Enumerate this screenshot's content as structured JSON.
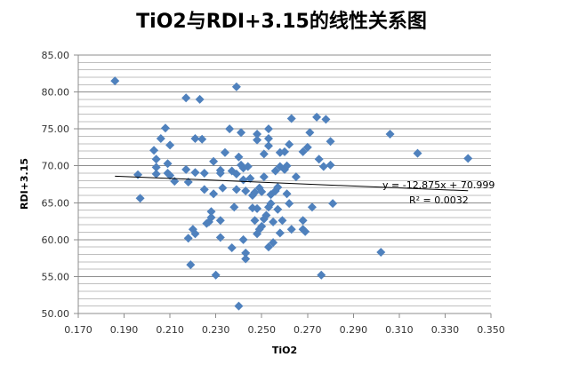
{
  "chart_data": {
    "type": "scatter",
    "title": "TiO2与RDI+3.15的线性关系图",
    "xlabel": "TiO2",
    "ylabel": "RDI+3.15",
    "xlim": [
      0.17,
      0.35
    ],
    "ylim": [
      50,
      85
    ],
    "x_ticks": [
      "0.170",
      "0.190",
      "0.210",
      "0.230",
      "0.250",
      "0.270",
      "0.290",
      "0.310",
      "0.330",
      "0.350"
    ],
    "y_ticks": [
      "85.00",
      "80.00",
      "75.00",
      "70.00",
      "65.00",
      "60.00",
      "55.00",
      "50.00"
    ],
    "grid": {
      "major_y": 5,
      "minor_y": 1,
      "x_grid": false
    },
    "marker": {
      "shape": "diamond",
      "color": "#4F81BD"
    },
    "trendline": {
      "type": "linear",
      "equation": "y = -12.875x  + 70.999",
      "r_squared": "R² = 0.0032",
      "slope": -12.875,
      "intercept": 70.999,
      "x_range": [
        0.186,
        0.34
      ],
      "color": "#000000"
    },
    "points": [
      [
        0.186,
        81.5
      ],
      [
        0.196,
        68.8
      ],
      [
        0.197,
        65.6
      ],
      [
        0.203,
        72.1
      ],
      [
        0.204,
        70.9
      ],
      [
        0.204,
        69.8
      ],
      [
        0.204,
        68.9
      ],
      [
        0.206,
        73.7
      ],
      [
        0.208,
        75.1
      ],
      [
        0.209,
        69.0
      ],
      [
        0.209,
        70.3
      ],
      [
        0.21,
        72.8
      ],
      [
        0.21,
        68.7
      ],
      [
        0.212,
        67.9
      ],
      [
        0.217,
        79.2
      ],
      [
        0.217,
        69.5
      ],
      [
        0.218,
        67.8
      ],
      [
        0.218,
        60.2
      ],
      [
        0.219,
        56.6
      ],
      [
        0.22,
        61.4
      ],
      [
        0.221,
        73.7
      ],
      [
        0.221,
        69.1
      ],
      [
        0.221,
        60.8
      ],
      [
        0.223,
        79.0
      ],
      [
        0.224,
        73.6
      ],
      [
        0.225,
        69.0
      ],
      [
        0.225,
        66.8
      ],
      [
        0.226,
        62.2
      ],
      [
        0.227,
        62.4
      ],
      [
        0.228,
        63.8
      ],
      [
        0.228,
        63.0
      ],
      [
        0.229,
        70.6
      ],
      [
        0.229,
        66.2
      ],
      [
        0.23,
        55.2
      ],
      [
        0.232,
        69.4
      ],
      [
        0.232,
        69.0
      ],
      [
        0.232,
        62.6
      ],
      [
        0.232,
        60.3
      ],
      [
        0.233,
        67.0
      ],
      [
        0.234,
        71.8
      ],
      [
        0.236,
        75.0
      ],
      [
        0.237,
        69.3
      ],
      [
        0.237,
        58.9
      ],
      [
        0.238,
        64.4
      ],
      [
        0.239,
        80.7
      ],
      [
        0.239,
        68.9
      ],
      [
        0.239,
        66.8
      ],
      [
        0.24,
        71.2
      ],
      [
        0.24,
        51.0
      ],
      [
        0.241,
        74.5
      ],
      [
        0.241,
        70.1
      ],
      [
        0.242,
        69.7
      ],
      [
        0.242,
        68.1
      ],
      [
        0.242,
        60.0
      ],
      [
        0.243,
        57.4
      ],
      [
        0.243,
        66.6
      ],
      [
        0.243,
        58.2
      ],
      [
        0.244,
        69.9
      ],
      [
        0.245,
        68.3
      ],
      [
        0.246,
        66.0
      ],
      [
        0.246,
        64.3
      ],
      [
        0.247,
        66.4
      ],
      [
        0.247,
        62.6
      ],
      [
        0.248,
        74.3
      ],
      [
        0.248,
        73.5
      ],
      [
        0.248,
        64.2
      ],
      [
        0.248,
        60.8
      ],
      [
        0.249,
        61.4
      ],
      [
        0.249,
        67.0
      ],
      [
        0.25,
        61.8
      ],
      [
        0.25,
        66.5
      ],
      [
        0.251,
        71.6
      ],
      [
        0.251,
        68.5
      ],
      [
        0.251,
        62.8
      ],
      [
        0.252,
        63.3
      ],
      [
        0.253,
        75.0
      ],
      [
        0.253,
        73.7
      ],
      [
        0.253,
        72.7
      ],
      [
        0.253,
        64.4
      ],
      [
        0.253,
        59.0
      ],
      [
        0.254,
        66.1
      ],
      [
        0.254,
        64.9
      ],
      [
        0.255,
        59.6
      ],
      [
        0.255,
        62.4
      ],
      [
        0.256,
        69.3
      ],
      [
        0.256,
        66.6
      ],
      [
        0.257,
        67.1
      ],
      [
        0.257,
        64.1
      ],
      [
        0.258,
        71.8
      ],
      [
        0.258,
        69.9
      ],
      [
        0.258,
        60.9
      ],
      [
        0.259,
        62.6
      ],
      [
        0.26,
        71.9
      ],
      [
        0.26,
        69.5
      ],
      [
        0.261,
        66.2
      ],
      [
        0.261,
        70.0
      ],
      [
        0.262,
        72.9
      ],
      [
        0.262,
        64.9
      ],
      [
        0.263,
        76.4
      ],
      [
        0.263,
        61.4
      ],
      [
        0.265,
        68.5
      ],
      [
        0.268,
        71.9
      ],
      [
        0.268,
        62.6
      ],
      [
        0.268,
        61.4
      ],
      [
        0.269,
        61.1
      ],
      [
        0.27,
        72.5
      ],
      [
        0.271,
        74.5
      ],
      [
        0.272,
        64.4
      ],
      [
        0.274,
        76.6
      ],
      [
        0.275,
        70.9
      ],
      [
        0.276,
        55.2
      ],
      [
        0.277,
        69.9
      ],
      [
        0.278,
        76.3
      ],
      [
        0.28,
        73.3
      ],
      [
        0.28,
        70.1
      ],
      [
        0.281,
        64.9
      ],
      [
        0.302,
        58.3
      ],
      [
        0.306,
        74.3
      ],
      [
        0.318,
        71.7
      ],
      [
        0.34,
        71.0
      ]
    ]
  }
}
